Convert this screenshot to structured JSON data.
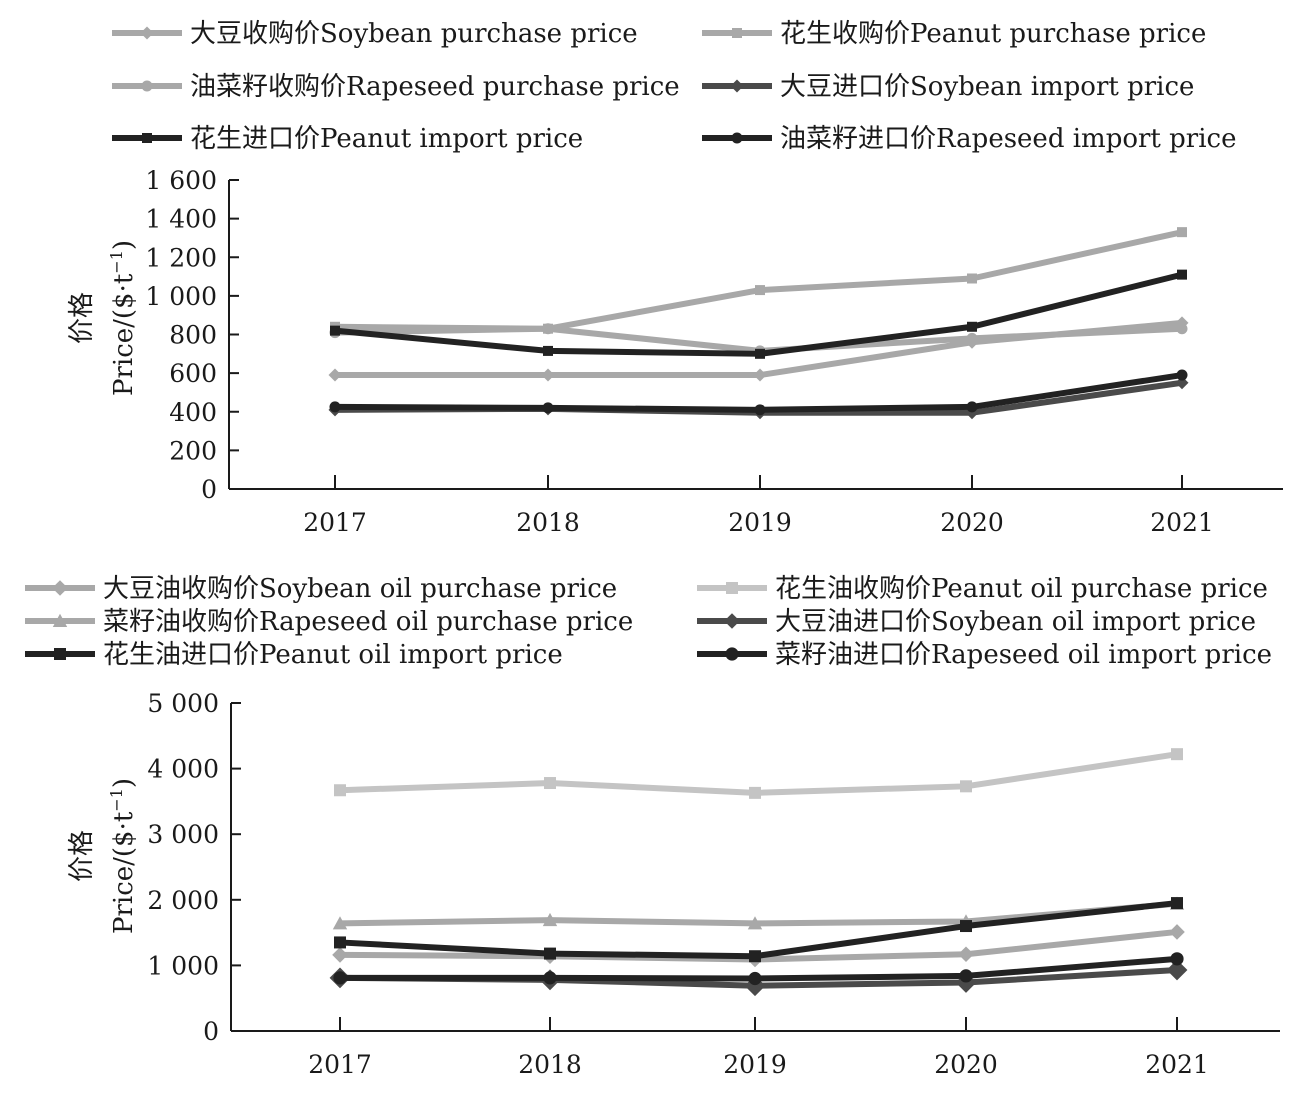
{
  "chart_data": [
    {
      "type": "line",
      "title": "",
      "categories": [
        "2017",
        "2018",
        "2019",
        "2020",
        "2021"
      ],
      "ylabel_cn": "价格",
      "ylabel_en": "Price/($·t",
      "ylabel_sup": "−1",
      "ylabel_close": ")",
      "ylim": [
        0,
        1600
      ],
      "yticks": [
        0,
        200,
        400,
        600,
        800,
        1000,
        1200,
        1400,
        1600
      ],
      "ytick_labels": [
        "0",
        "200",
        "400",
        "600",
        "800",
        "1 000",
        "1 200",
        "1 400",
        "1 600"
      ],
      "grid": false,
      "legend_position": "top",
      "series": [
        {
          "name": "大豆收购价Soybean purchase price",
          "color": "#a8a8a8",
          "marker": "diamond",
          "values": [
            590,
            590,
            590,
            760,
            860
          ]
        },
        {
          "name": "花生收购价Peanut purchase price",
          "color": "#a8a8a8",
          "marker": "square",
          "values": [
            840,
            830,
            1030,
            1090,
            1330
          ]
        },
        {
          "name": "油菜籽收购价Rapeseed purchase price",
          "color": "#a8a8a8",
          "marker": "circle",
          "values": [
            810,
            830,
            715,
            780,
            830
          ]
        },
        {
          "name": "大豆进口价Soybean import price",
          "color": "#4a4a4a",
          "marker": "diamond",
          "values": [
            410,
            415,
            395,
            395,
            550
          ]
        },
        {
          "name": "花生进口价Peanut import price",
          "color": "#222222",
          "marker": "square",
          "values": [
            820,
            715,
            700,
            840,
            1110
          ]
        },
        {
          "name": "油菜籽进口价Rapeseed import price",
          "color": "#222222",
          "marker": "circle",
          "values": [
            425,
            420,
            410,
            425,
            590
          ]
        }
      ]
    },
    {
      "type": "line",
      "title": "",
      "categories": [
        "2017",
        "2018",
        "2019",
        "2020",
        "2021"
      ],
      "ylabel_cn": "价格",
      "ylabel_en": "Price/($·t",
      "ylabel_sup": "−1",
      "ylabel_close": ")",
      "ylim": [
        0,
        5000
      ],
      "yticks": [
        0,
        1000,
        2000,
        3000,
        4000,
        5000
      ],
      "ytick_labels": [
        "0",
        "1 000",
        "2 000",
        "3 000",
        "4 000",
        "5 000"
      ],
      "grid": false,
      "legend_position": "top",
      "series": [
        {
          "name": "大豆油收购价Soybean oil purchase price",
          "color": "#a8a8a8",
          "marker": "diamond",
          "values": [
            1160,
            1140,
            1090,
            1170,
            1510
          ]
        },
        {
          "name": "花生油收购价Peanut oil purchase price",
          "color": "#c4c4c4",
          "marker": "square",
          "values": [
            3670,
            3780,
            3630,
            3730,
            4220
          ]
        },
        {
          "name": "菜籽油收购价Rapeseed oil purchase price",
          "color": "#a8a8a8",
          "marker": "triangle",
          "values": [
            1640,
            1690,
            1640,
            1670,
            1940
          ]
        },
        {
          "name": "大豆油进口价Soybean oil import price",
          "color": "#4a4a4a",
          "marker": "diamond",
          "values": [
            810,
            780,
            690,
            740,
            930
          ]
        },
        {
          "name": "花生油进口价Peanut oil import price",
          "color": "#222222",
          "marker": "square",
          "values": [
            1350,
            1180,
            1140,
            1600,
            1950
          ]
        },
        {
          "name": "菜籽油进口价Rapeseed oil import price",
          "color": "#222222",
          "marker": "circle",
          "values": [
            810,
            810,
            800,
            840,
            1100
          ]
        }
      ]
    }
  ]
}
